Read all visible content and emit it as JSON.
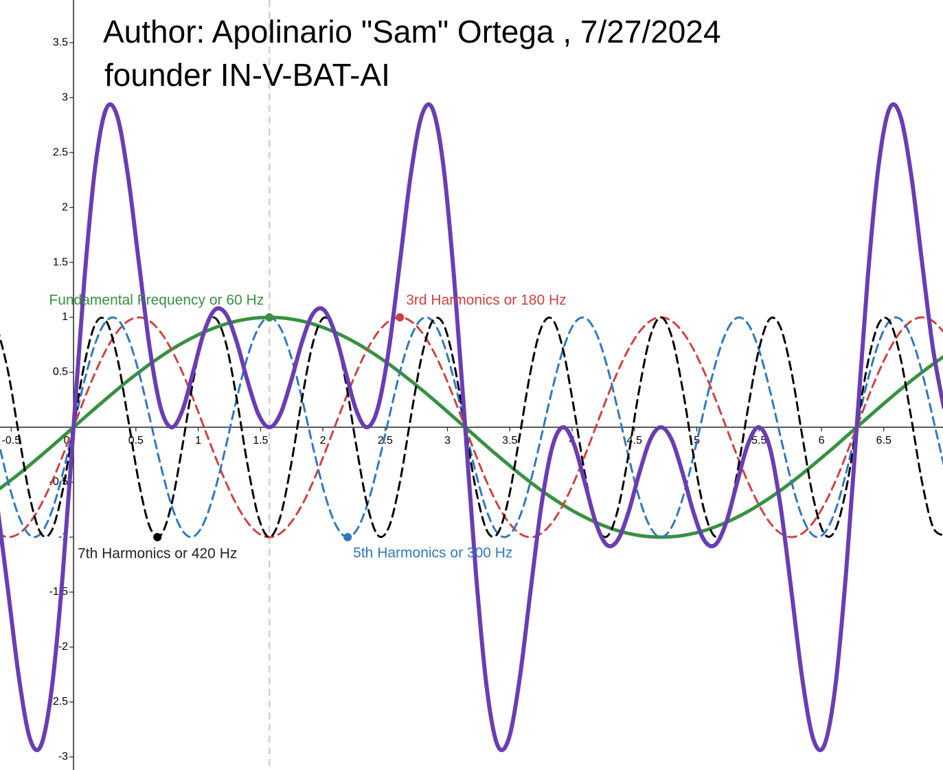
{
  "chart_data": {
    "type": "line",
    "title": "Author: Apolinario \"Sam\" Ortega , 7/27/2024",
    "subtitle": "founder IN-V-BAT-AI",
    "xlim": [
      -0.59,
      6.975
    ],
    "ylim": [
      -3.119,
      3.888
    ],
    "xticks": [
      -0.5,
      0,
      0.5,
      1,
      1.5,
      2,
      2.5,
      3,
      3.5,
      4,
      4.5,
      5,
      5.5,
      6,
      6.5
    ],
    "yticks": [
      -3,
      -2.5,
      -2,
      -1.5,
      -1,
      -0.5,
      0.5,
      1,
      1.5,
      2,
      2.5,
      3,
      3.5
    ],
    "grid": false,
    "vline_x": 1.571,
    "x": [
      -0.611,
      -0.524,
      -0.436,
      -0.349,
      -0.262,
      -0.175,
      -0.087,
      0,
      0.087,
      0.175,
      0.262,
      0.349,
      0.436,
      0.524,
      0.611,
      0.698,
      0.785,
      0.873,
      0.96,
      1.047,
      1.134,
      1.222,
      1.309,
      1.396,
      1.484,
      1.571,
      1.658,
      1.745,
      1.833,
      1.92,
      2.007,
      2.094,
      2.182,
      2.269,
      2.356,
      2.443,
      2.531,
      2.618,
      2.705,
      2.793,
      2.88,
      2.967,
      3.054,
      3.142,
      3.229,
      3.316,
      3.403,
      3.491,
      3.578,
      3.665,
      3.752,
      3.84,
      3.927,
      4.014,
      4.102,
      4.189,
      4.276,
      4.363,
      4.451,
      4.538,
      4.625,
      4.712,
      4.8,
      4.887,
      4.974,
      5.061,
      5.149,
      5.236,
      5.323,
      5.411,
      5.498,
      5.585,
      5.672,
      5.76,
      5.847,
      5.934,
      6.021,
      6.109,
      6.196,
      6.283,
      6.37,
      6.458,
      6.545,
      6.632,
      6.72,
      6.807,
      6.894,
      6.981
    ],
    "series": [
      {
        "name": "Fundamental Frequency or 60 Hz",
        "color": "#37913f",
        "dashed": false,
        "width": 5,
        "marker": {
          "x": 1.571,
          "y": 1
        },
        "label_position": "above-left",
        "values": [
          -0.574,
          -0.5,
          -0.423,
          -0.342,
          -0.259,
          -0.174,
          -0.087,
          0,
          0.087,
          0.174,
          0.259,
          0.342,
          0.423,
          0.5,
          0.574,
          0.643,
          0.707,
          0.766,
          0.819,
          0.866,
          0.906,
          0.94,
          0.966,
          0.985,
          0.996,
          1,
          0.996,
          0.985,
          0.966,
          0.94,
          0.906,
          0.866,
          0.819,
          0.766,
          0.707,
          0.643,
          0.574,
          0.5,
          0.423,
          0.342,
          0.259,
          0.174,
          0.087,
          0,
          -0.087,
          -0.174,
          -0.259,
          -0.342,
          -0.423,
          -0.5,
          -0.574,
          -0.643,
          -0.707,
          -0.766,
          -0.819,
          -0.866,
          -0.906,
          -0.94,
          -0.966,
          -0.985,
          -0.996,
          -1,
          -0.996,
          -0.985,
          -0.966,
          -0.94,
          -0.906,
          -0.866,
          -0.819,
          -0.766,
          -0.707,
          -0.643,
          -0.574,
          -0.5,
          -0.423,
          -0.342,
          -0.259,
          -0.174,
          -0.087,
          0,
          0.087,
          0.174,
          0.259,
          0.342,
          0.423,
          0.5,
          0.574,
          0.643
        ]
      },
      {
        "name": "3rd Harmonics or 180 Hz",
        "color": "#d0413f",
        "dashed": true,
        "width": 3,
        "marker": {
          "x": 2.618,
          "y": 1
        },
        "label_position": "above-right",
        "values": [
          -0.966,
          -1,
          -0.966,
          -0.866,
          -0.707,
          -0.5,
          -0.259,
          0,
          0.259,
          0.5,
          0.707,
          0.866,
          0.966,
          1,
          0.966,
          0.866,
          0.707,
          0.5,
          0.259,
          0,
          -0.259,
          -0.5,
          -0.707,
          -0.866,
          -0.966,
          -1,
          -0.966,
          -0.866,
          -0.707,
          -0.5,
          -0.259,
          0,
          0.259,
          0.5,
          0.707,
          0.866,
          0.966,
          1,
          0.966,
          0.866,
          0.707,
          0.5,
          0.259,
          0,
          -0.259,
          -0.5,
          -0.707,
          -0.866,
          -0.966,
          -1,
          -0.966,
          -0.866,
          -0.707,
          -0.5,
          -0.259,
          0,
          0.259,
          0.5,
          0.707,
          0.866,
          0.966,
          1,
          0.966,
          0.866,
          0.707,
          0.5,
          0.259,
          0,
          -0.259,
          -0.5,
          -0.707,
          -0.866,
          -0.966,
          -1,
          -0.966,
          -0.866,
          -0.707,
          -0.5,
          -0.259,
          0,
          0.259,
          0.5,
          0.707,
          0.866,
          0.966,
          1,
          0.966,
          0.866
        ]
      },
      {
        "name": "5th Harmonics or 300 Hz",
        "color": "#2f78c0",
        "dashed": true,
        "width": 3,
        "marker": {
          "x": 2.199,
          "y": -1
        },
        "label_position": "below-right",
        "values": [
          -0.087,
          -0.5,
          -0.819,
          -0.985,
          -0.966,
          -0.766,
          -0.423,
          0,
          0.423,
          0.766,
          0.966,
          0.985,
          0.819,
          0.5,
          0.087,
          -0.342,
          -0.707,
          -0.94,
          -0.996,
          -0.866,
          -0.574,
          -0.174,
          0.259,
          0.643,
          0.906,
          1,
          0.906,
          0.643,
          0.259,
          -0.174,
          -0.574,
          -0.866,
          -0.996,
          -0.94,
          -0.707,
          -0.342,
          0.087,
          0.5,
          0.819,
          0.985,
          0.966,
          0.766,
          0.423,
          0,
          -0.423,
          -0.766,
          -0.966,
          -0.985,
          -0.819,
          -0.5,
          -0.087,
          0.342,
          0.707,
          0.94,
          0.996,
          0.866,
          0.574,
          0.174,
          -0.259,
          -0.643,
          -0.906,
          -1,
          -0.906,
          -0.643,
          -0.259,
          0.174,
          0.574,
          0.866,
          0.996,
          0.94,
          0.707,
          0.342,
          -0.087,
          -0.5,
          -0.819,
          -0.985,
          -0.966,
          -0.766,
          -0.423,
          0,
          0.423,
          0.766,
          0.966,
          0.985,
          0.819,
          0.5,
          0.087,
          -0.342
        ]
      },
      {
        "name": "7th Harmonics or 420 Hz",
        "color": "#000000",
        "dashed": true,
        "width": 3,
        "marker": {
          "x": 0.673,
          "y": -1
        },
        "label_position": "below",
        "values": [
          0.906,
          0.5,
          -0.087,
          -0.643,
          -0.966,
          -0.94,
          -0.574,
          0,
          0.574,
          0.94,
          0.966,
          0.643,
          0.087,
          -0.5,
          -0.906,
          -0.985,
          -0.707,
          -0.174,
          0.423,
          0.866,
          0.996,
          0.766,
          0.259,
          -0.342,
          -0.819,
          -1,
          -0.819,
          -0.342,
          0.259,
          0.766,
          0.996,
          0.866,
          0.423,
          -0.174,
          -0.707,
          -0.985,
          -0.906,
          -0.5,
          0.087,
          0.643,
          0.966,
          0.94,
          0.574,
          0,
          -0.574,
          -0.94,
          -0.966,
          -0.643,
          -0.087,
          0.5,
          0.906,
          0.985,
          0.707,
          0.174,
          -0.423,
          -0.866,
          -0.996,
          -0.766,
          -0.259,
          0.342,
          0.819,
          1,
          0.819,
          0.342,
          -0.259,
          -0.766,
          -0.996,
          -0.866,
          -0.423,
          0.174,
          0.707,
          0.985,
          0.906,
          0.5,
          -0.087,
          -0.643,
          -0.966,
          -0.94,
          -0.574,
          0,
          0.574,
          0.94,
          0.966,
          0.643,
          0.087,
          -0.5,
          -0.906,
          -0.985
        ]
      },
      {
        "color": "#6a3db3",
        "dashed": false,
        "width": 6,
        "values": [
          -0.721,
          -1.5,
          -2.295,
          -2.836,
          -2.898,
          -2.38,
          -1.343,
          0,
          1.343,
          2.38,
          2.898,
          2.836,
          2.295,
          1.5,
          0.721,
          0.182,
          0,
          0.152,
          0.505,
          0.866,
          1.069,
          1.032,
          0.777,
          0.42,
          0.117,
          0,
          0.117,
          0.42,
          0.777,
          1.032,
          1.069,
          0.866,
          0.505,
          0.152,
          0,
          0.182,
          0.721,
          1.5,
          2.295,
          2.836,
          2.898,
          2.38,
          1.343,
          0,
          -1.343,
          -2.38,
          -2.898,
          -2.836,
          -2.295,
          -1.5,
          -0.721,
          -0.182,
          0,
          -0.152,
          -0.505,
          -0.866,
          -1.069,
          -1.032,
          -0.777,
          -0.42,
          -0.117,
          0,
          -0.117,
          -0.42,
          -0.777,
          -1.032,
          -1.069,
          -0.866,
          -0.505,
          -0.152,
          0,
          -0.182,
          -0.721,
          -1.5,
          -2.295,
          -2.836,
          -2.898,
          -2.38,
          -1.343,
          0,
          1.343,
          2.38,
          2.898,
          2.836,
          2.295,
          1.5,
          0.721,
          0.182
        ]
      }
    ]
  }
}
